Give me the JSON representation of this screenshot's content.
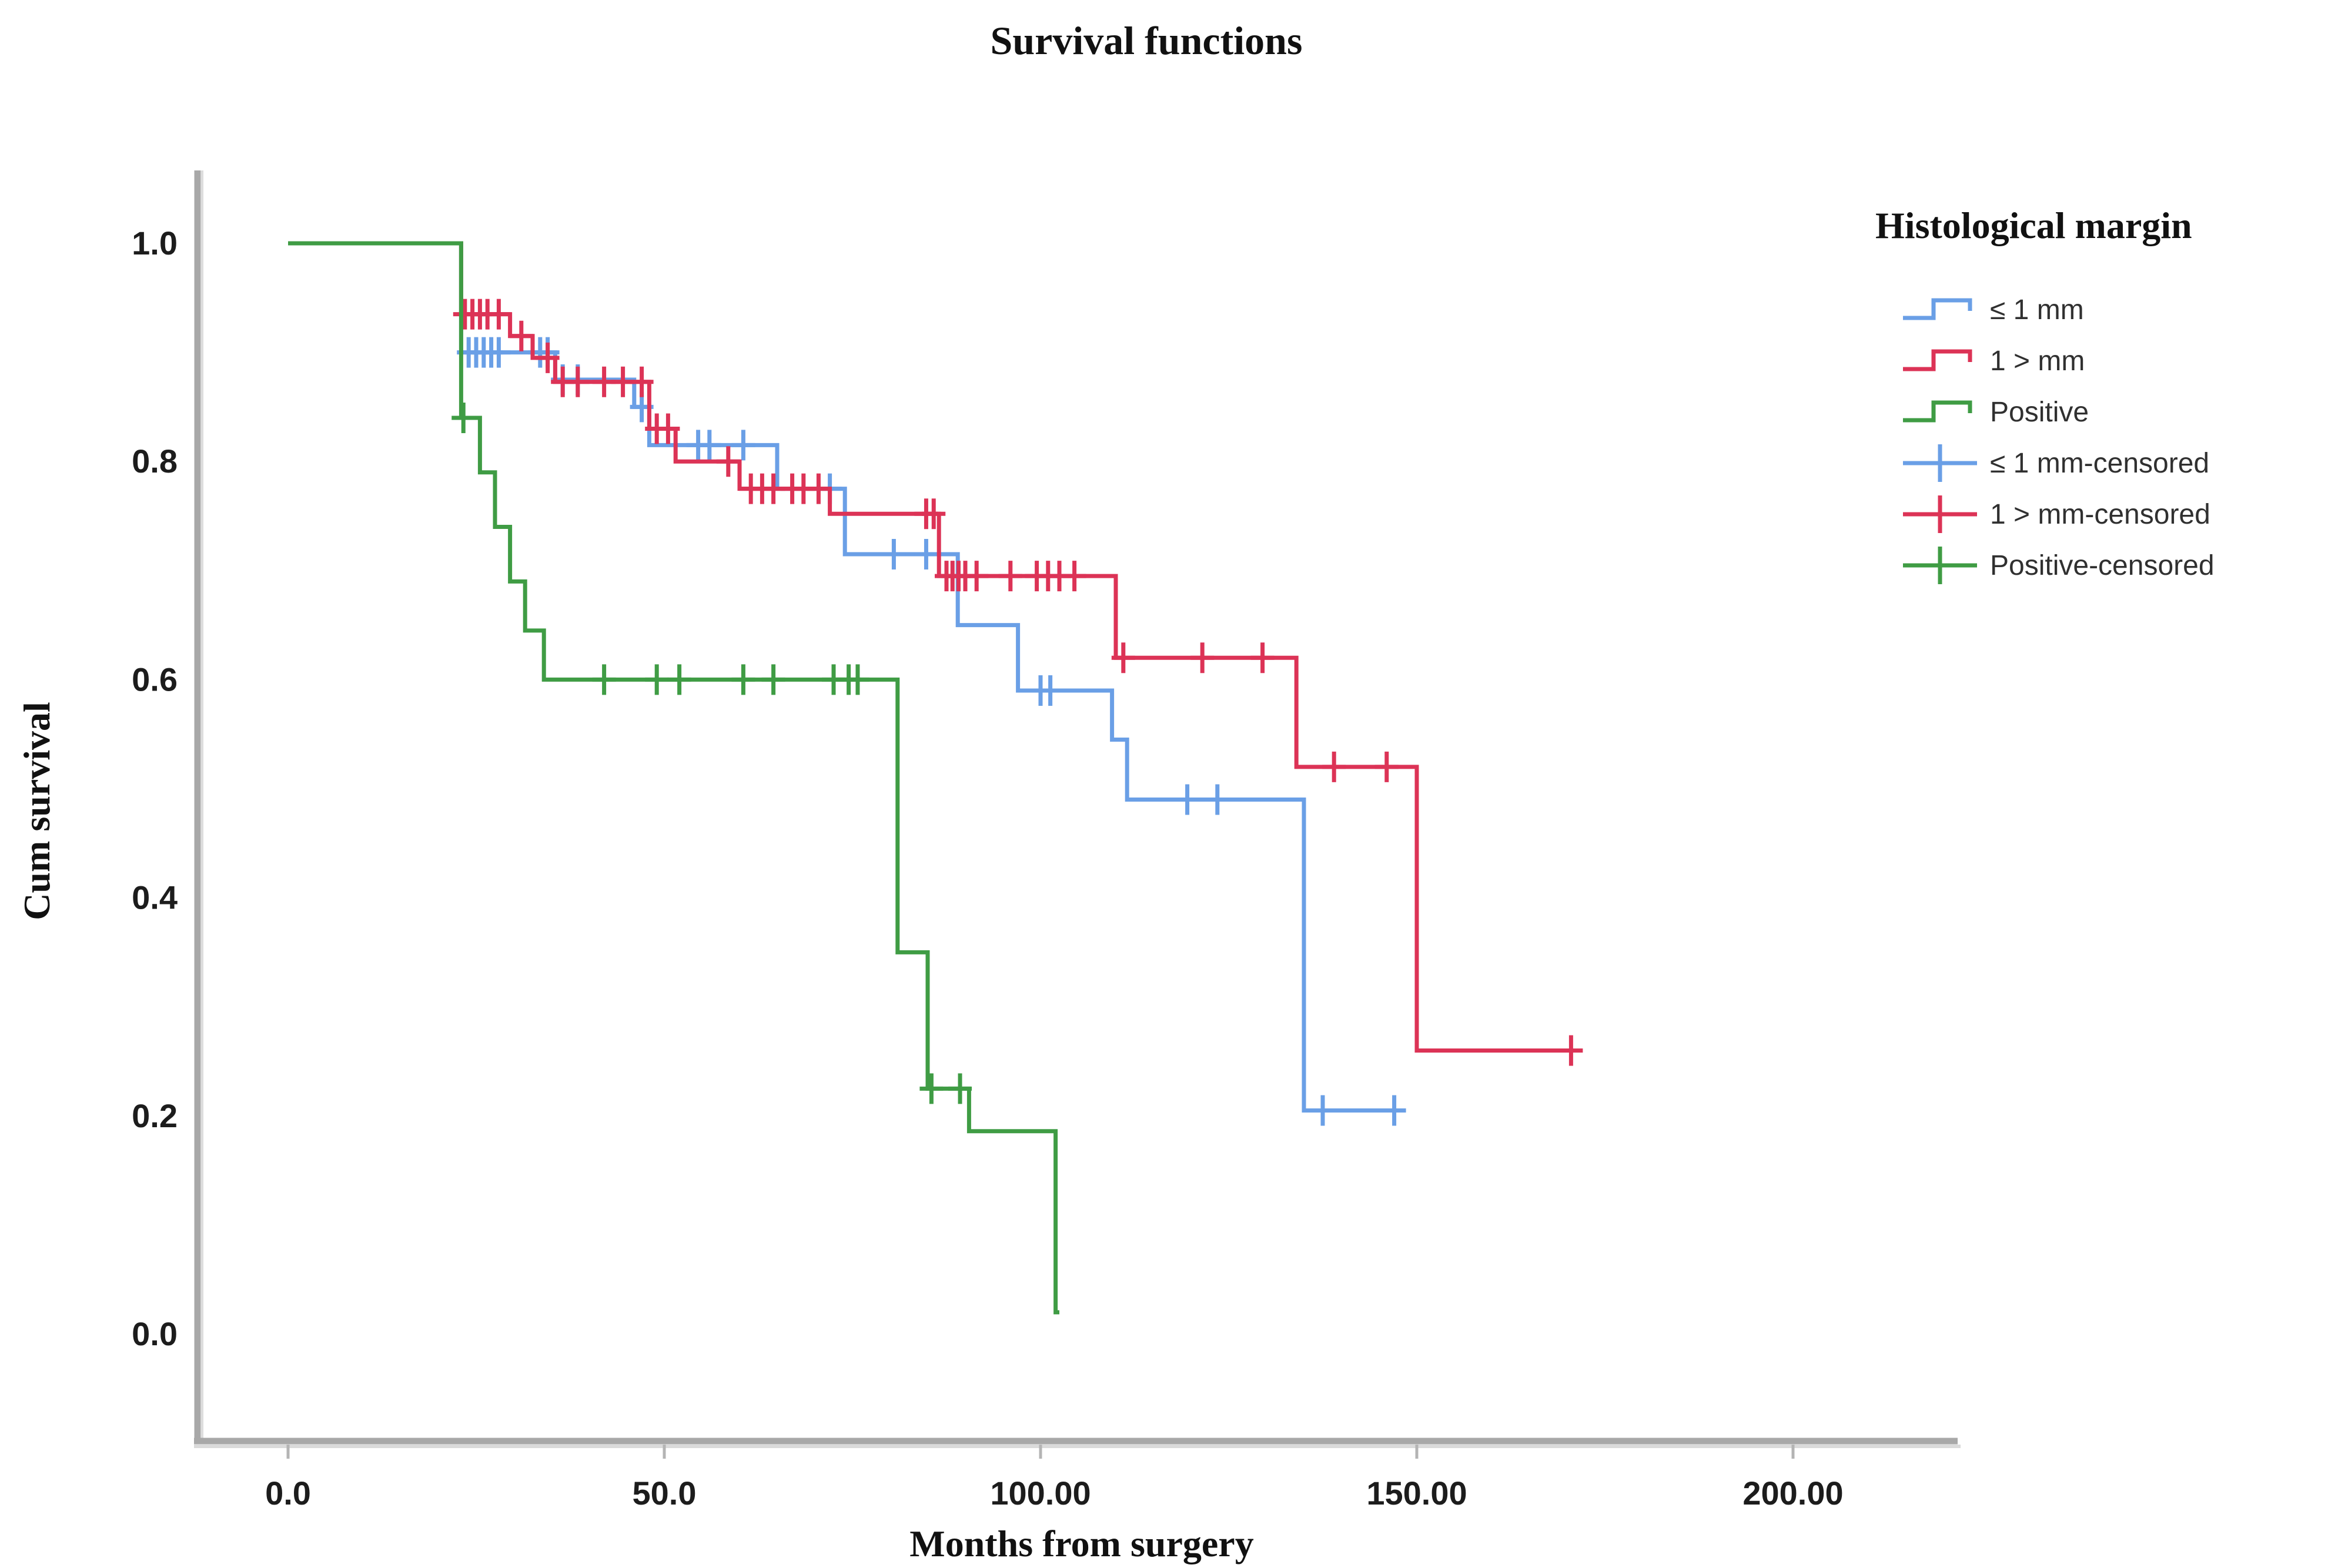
{
  "page": {
    "background": "#ffffff"
  },
  "title": "Survival functions",
  "legend": {
    "title": "Histological margin",
    "entries": [
      {
        "label": "≤ 1 mm",
        "type": "step-line",
        "color": "#6A9FE6"
      },
      {
        "label": "1 > mm",
        "type": "step-line",
        "color": "#DC3356"
      },
      {
        "label": "Positive",
        "type": "step-line",
        "color": "#3F9C44"
      },
      {
        "label": "≤ 1 mm-censored",
        "type": "censor-plus",
        "color": "#6A9FE6"
      },
      {
        "label": "1 > mm-censored",
        "type": "censor-plus",
        "color": "#DC3356"
      },
      {
        "label": "Positive-censored",
        "type": "censor-plus",
        "color": "#3F9C44"
      }
    ]
  },
  "chart_data": {
    "type": "line",
    "subtype": "kaplan-meier-step",
    "title": "Survival functions",
    "xlabel": "Months from surgery",
    "ylabel": "Cum survival",
    "xlim": [
      -12,
      218
    ],
    "ylim": [
      -0.095,
      1.045
    ],
    "grid": false,
    "legend_position": "right",
    "x_ticks": [
      {
        "value": 0,
        "label": "0.0"
      },
      {
        "value": 50,
        "label": "50.0"
      },
      {
        "value": 100,
        "label": "100.00"
      },
      {
        "value": 150,
        "label": "150.00"
      },
      {
        "value": 200,
        "label": "200.00"
      }
    ],
    "y_ticks": [
      {
        "value": 1.0,
        "label": "1.0"
      },
      {
        "value": 0.8,
        "label": "0.8"
      },
      {
        "value": 0.6,
        "label": "0.6"
      },
      {
        "value": 0.4,
        "label": "0.4"
      },
      {
        "value": 0.2,
        "label": "0.2"
      },
      {
        "value": 0.0,
        "label": "0.0"
      }
    ],
    "series": [
      {
        "name": "≤ 1 mm",
        "color": "#6A9FE6",
        "start": [
          0,
          1.0
        ],
        "steps": [
          [
            23,
            0.9
          ],
          [
            35.5,
            0.875
          ],
          [
            46,
            0.85
          ],
          [
            48,
            0.815
          ],
          [
            65,
            0.775
          ],
          [
            74,
            0.715
          ],
          [
            89,
            0.65
          ],
          [
            97,
            0.59
          ],
          [
            109.5,
            0.545
          ],
          [
            111.5,
            0.49
          ],
          [
            135,
            0.205
          ]
        ],
        "end_time": 148,
        "censored": [
          [
            24,
            0.9
          ],
          [
            25,
            0.9
          ],
          [
            26,
            0.9
          ],
          [
            27,
            0.9
          ],
          [
            28,
            0.9
          ],
          [
            33.5,
            0.9
          ],
          [
            34.5,
            0.9
          ],
          [
            36.5,
            0.875
          ],
          [
            38.5,
            0.875
          ],
          [
            47,
            0.85
          ],
          [
            54.5,
            0.815
          ],
          [
            56,
            0.815
          ],
          [
            60.5,
            0.815
          ],
          [
            72,
            0.775
          ],
          [
            80.5,
            0.715
          ],
          [
            84.8,
            0.715
          ],
          [
            100,
            0.59
          ],
          [
            101.3,
            0.59
          ],
          [
            119.5,
            0.49
          ],
          [
            123.5,
            0.49
          ],
          [
            137.5,
            0.205
          ],
          [
            147,
            0.205
          ]
        ]
      },
      {
        "name": "1 > mm",
        "color": "#DC3356",
        "start": [
          0,
          1.0
        ],
        "steps": [
          [
            23,
            0.935
          ],
          [
            29.5,
            0.915
          ],
          [
            32.5,
            0.895
          ],
          [
            35.5,
            0.873
          ],
          [
            48,
            0.83
          ],
          [
            51.5,
            0.8
          ],
          [
            60,
            0.775
          ],
          [
            72,
            0.752
          ],
          [
            86.5,
            0.695
          ],
          [
            110,
            0.62
          ],
          [
            134,
            0.52
          ],
          [
            150,
            0.26
          ]
        ],
        "end_time": 171.5,
        "censored": [
          [
            23.5,
            0.935
          ],
          [
            24.5,
            0.935
          ],
          [
            25.5,
            0.935
          ],
          [
            26.5,
            0.935
          ],
          [
            28,
            0.935
          ],
          [
            31,
            0.915
          ],
          [
            34.5,
            0.895
          ],
          [
            36.5,
            0.873
          ],
          [
            38.5,
            0.873
          ],
          [
            42,
            0.873
          ],
          [
            44.5,
            0.873
          ],
          [
            47,
            0.873
          ],
          [
            49,
            0.83
          ],
          [
            50.5,
            0.83
          ],
          [
            58.5,
            0.8
          ],
          [
            61.5,
            0.775
          ],
          [
            63,
            0.775
          ],
          [
            64.5,
            0.775
          ],
          [
            67,
            0.775
          ],
          [
            68.5,
            0.775
          ],
          [
            70.5,
            0.775
          ],
          [
            84.8,
            0.752
          ],
          [
            85.8,
            0.752
          ],
          [
            87.5,
            0.695
          ],
          [
            88.3,
            0.695
          ],
          [
            89.1,
            0.695
          ],
          [
            90,
            0.695
          ],
          [
            91.5,
            0.695
          ],
          [
            96,
            0.695
          ],
          [
            99.5,
            0.695
          ],
          [
            101,
            0.695
          ],
          [
            102.5,
            0.695
          ],
          [
            104.5,
            0.695
          ],
          [
            111,
            0.62
          ],
          [
            121.5,
            0.62
          ],
          [
            129.5,
            0.62
          ],
          [
            139,
            0.52
          ],
          [
            146,
            0.52
          ],
          [
            170.5,
            0.26
          ]
        ]
      },
      {
        "name": "Positive",
        "color": "#3F9C44",
        "start": [
          0,
          1.0
        ],
        "steps": [
          [
            23,
            0.84
          ],
          [
            25.5,
            0.79
          ],
          [
            27.5,
            0.74
          ],
          [
            29.5,
            0.69
          ],
          [
            31.5,
            0.645
          ],
          [
            34,
            0.6
          ],
          [
            81,
            0.35
          ],
          [
            85,
            0.225
          ],
          [
            90.5,
            0.186
          ],
          [
            102,
            0.02
          ]
        ],
        "end_time": 102.5,
        "censored": [
          [
            23.3,
            0.84
          ],
          [
            42,
            0.6
          ],
          [
            49,
            0.6
          ],
          [
            52,
            0.6
          ],
          [
            60.5,
            0.6
          ],
          [
            64.5,
            0.6
          ],
          [
            72.5,
            0.6
          ],
          [
            74.5,
            0.6
          ],
          [
            75.7,
            0.6
          ],
          [
            85.5,
            0.225
          ],
          [
            89.3,
            0.225
          ]
        ]
      }
    ]
  }
}
